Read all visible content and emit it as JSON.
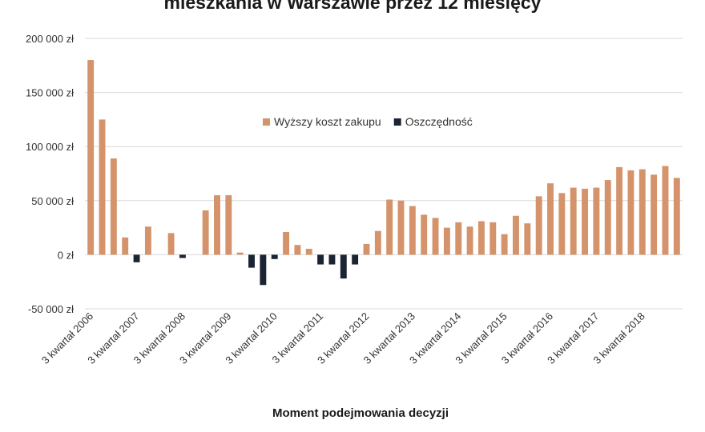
{
  "chart_data": {
    "type": "bar",
    "title": "mieszkania w Warszawie przez 12 miesięcy",
    "xlabel": "Moment podejmowania decyzji",
    "ylabel": "",
    "ylim": [
      -50000,
      200000
    ],
    "y_ticks": [
      200000,
      150000,
      100000,
      50000,
      0,
      -50000
    ],
    "y_tick_labels": [
      "200 000 zł",
      "150 000 zł",
      "100 000 zł",
      "50 000 zł",
      "0 zł",
      "-50 000 zł"
    ],
    "grid": true,
    "legend_position": "center",
    "x_tick_labels": [
      "3 kwartał 2006",
      "3 kwartał 2007",
      "3 kwartał 2008",
      "3 kwartał 2009",
      "3 kwartał 2010",
      "3 kwartał 2011",
      "3 kwartał 2012",
      "3 kwartał 2013",
      "3 kwartał 2014",
      "3 kwartał 2015",
      "3 kwartał 2016",
      "3 kwartał 2017",
      "3 kwartał 2018"
    ],
    "categories_per_tick": 4,
    "series": [
      {
        "name": "Wyższy koszt zakupu",
        "color": "#D4936A",
        "values": [
          180000,
          125000,
          89000,
          16000,
          0,
          26000,
          0,
          20000,
          0,
          0,
          41000,
          55000,
          55000,
          2000,
          0,
          0,
          0,
          21000,
          9000,
          5500,
          0,
          0,
          0,
          0,
          10000,
          22000,
          51000,
          50000,
          45000,
          37000,
          34000,
          25000,
          30000,
          26000,
          31000,
          30000,
          19000,
          36000,
          29000,
          54000,
          66000,
          57000,
          62000,
          61000,
          62000,
          69000,
          81000,
          78000,
          79000,
          74000,
          82000,
          71000
        ]
      },
      {
        "name": "Oszczędność",
        "color": "#1B2433",
        "values": [
          0,
          0,
          0,
          0,
          -7000,
          0,
          0,
          0,
          -3000,
          0,
          0,
          0,
          0,
          0,
          -12000,
          -28000,
          -4000,
          0,
          0,
          0,
          -9000,
          -9000,
          -22000,
          -9000,
          0,
          0,
          0,
          0,
          0,
          0,
          0,
          0,
          0,
          0,
          0,
          0,
          0,
          0,
          0,
          0,
          0,
          0,
          0,
          0,
          0,
          0,
          0,
          0,
          0,
          0,
          0,
          0
        ]
      }
    ]
  }
}
